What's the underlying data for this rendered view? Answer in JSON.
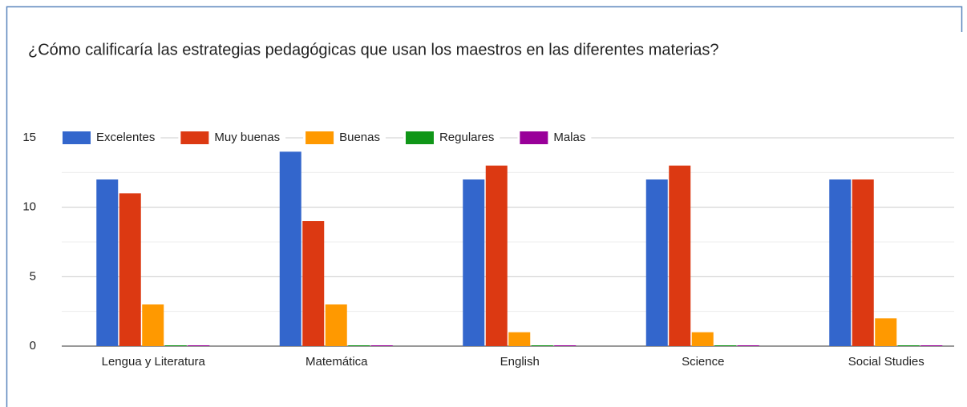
{
  "chart_data": {
    "type": "bar",
    "title": "¿Cómo calificaría las estrategias pedagógicas que usan los maestros en las diferentes materias?",
    "categories": [
      "Lengua y Literatura",
      "Matemática",
      "English",
      "Science",
      "Social Studies"
    ],
    "series": [
      {
        "name": "Excelentes",
        "color": "#3366cc",
        "values": [
          12,
          14,
          12,
          12,
          12
        ]
      },
      {
        "name": "Muy buenas",
        "color": "#dc3912",
        "values": [
          11,
          9,
          13,
          13,
          12
        ]
      },
      {
        "name": "Buenas",
        "color": "#ff9900",
        "values": [
          3,
          3,
          1,
          1,
          2
        ]
      },
      {
        "name": "Regulares",
        "color": "#109618",
        "values": [
          0,
          0,
          0,
          0,
          0
        ]
      },
      {
        "name": "Malas",
        "color": "#990099",
        "values": [
          0,
          0,
          0,
          0,
          0
        ]
      }
    ],
    "ylim": [
      0,
      15
    ],
    "yticks": [
      0,
      5,
      10,
      15
    ],
    "minor_yticks": [
      2.5,
      7.5,
      12.5
    ],
    "grid": true,
    "legend": "top"
  }
}
